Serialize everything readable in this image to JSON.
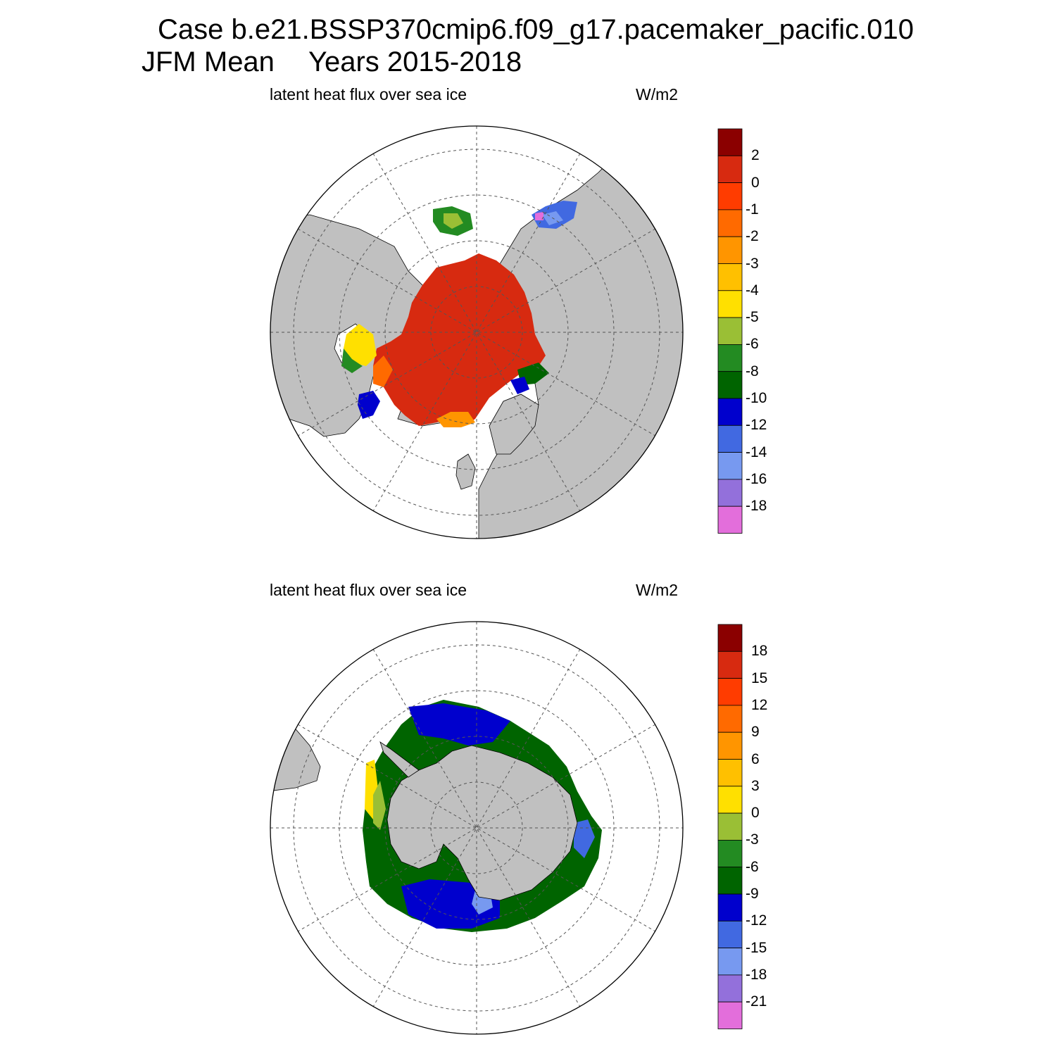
{
  "header": {
    "case_title": "Case b.e21.BSSP370cmip6.f09_g17.pacemaker_pacific.010",
    "season": "JFM Mean",
    "years": "Years 2015-2018"
  },
  "panels": [
    {
      "hemisphere": "north",
      "left_label": "latent heat flux over sea ice",
      "right_label": "W/m2",
      "colorbar": {
        "colors": [
          "#8b0000",
          "#d72a10",
          "#ff3c00",
          "#ff6a00",
          "#ff9500",
          "#ffc000",
          "#ffe000",
          "#9abf35",
          "#238b22",
          "#006400",
          "#0000cd",
          "#4169e1",
          "#7799f0",
          "#9370db",
          "#e36edb"
        ],
        "labels": [
          "2",
          "0",
          "-1",
          "-2",
          "-3",
          "-4",
          "-5",
          "-6",
          "-8",
          "-10",
          "-12",
          "-14",
          "-16",
          "-18"
        ]
      }
    },
    {
      "hemisphere": "south",
      "left_label": "latent heat flux over sea ice",
      "right_label": "W/m2",
      "colorbar": {
        "colors": [
          "#8b0000",
          "#d72a10",
          "#ff3c00",
          "#ff6a00",
          "#ff9500",
          "#ffc000",
          "#ffe000",
          "#9abf35",
          "#238b22",
          "#006400",
          "#0000cd",
          "#4169e1",
          "#7799f0",
          "#9370db",
          "#e36edb"
        ],
        "labels": [
          "18",
          "15",
          "12",
          "9",
          "6",
          "3",
          "0",
          "-3",
          "-6",
          "-9",
          "-12",
          "-15",
          "-18",
          "-21"
        ]
      }
    }
  ],
  "colors": {
    "land": "#c0c0c0",
    "grid": "#555555",
    "outline": "#000000"
  }
}
